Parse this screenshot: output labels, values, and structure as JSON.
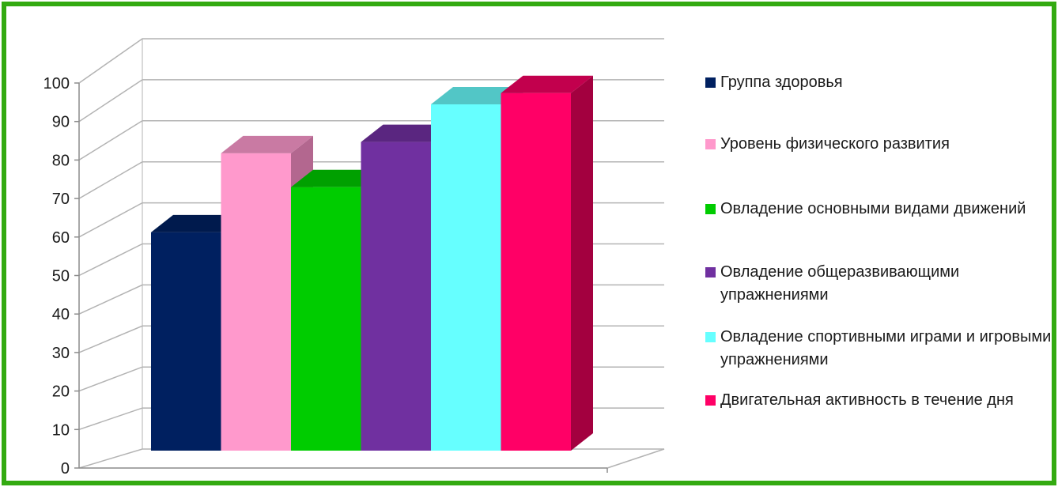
{
  "chart_data": {
    "type": "bar",
    "title": "",
    "xlabel": "",
    "ylabel": "",
    "ylim": [
      0,
      100
    ],
    "y_ticks": [
      "0",
      "10",
      "20",
      "30",
      "40",
      "50",
      "60",
      "70",
      "80",
      "90",
      "100"
    ],
    "grid": true,
    "legend_position": "right",
    "series": [
      {
        "name": "Группа здоровья",
        "value": 58,
        "color": "#002060",
        "side_color": "#001540",
        "top_color": "#001a4d"
      },
      {
        "name": "Уровень физического развития",
        "value": 79,
        "color": "#ff99cc",
        "side_color": "#b3678f",
        "top_color": "#c97aa3"
      },
      {
        "name": "Овладение основными видами движений",
        "value": 70,
        "color": "#00cc00",
        "side_color": "#008f00",
        "top_color": "#00a000"
      },
      {
        "name": "Овладение общеразвивающими упражнениями",
        "value": 82,
        "color": "#7030a0",
        "side_color": "#4e2170",
        "top_color": "#5a2680"
      },
      {
        "name": "Овладение спортивными играми и игровыми упражнениями",
        "value": 92,
        "color": "#66ffff",
        "side_color": "#47b3b3",
        "top_color": "#52c6c6"
      },
      {
        "name": "Двигательная активность в течение дня",
        "value": 95,
        "color": "#ff0066",
        "side_color": "#a3003f",
        "top_color": "#c2004d"
      }
    ]
  },
  "colors": {
    "frame_border": "#33aa11",
    "gridline": "#b3b3b3",
    "axis": "#8c8c8c",
    "text": "#1a1a1a"
  }
}
